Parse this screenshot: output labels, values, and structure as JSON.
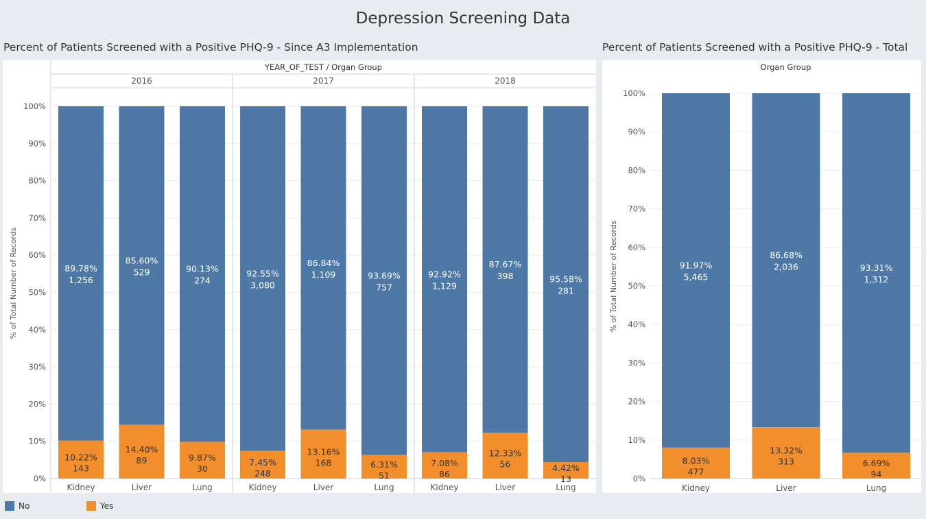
{
  "dashboard_title": "Depression Screening Data",
  "legend": [
    {
      "label": "No",
      "color": "#4e79a7"
    },
    {
      "label": "Yes",
      "color": "#f28e2b"
    }
  ],
  "chart_data": [
    {
      "type": "bar",
      "stacked": true,
      "title": "Percent of Patients Screened with a Positive PHQ-9 - Since A3 Implementation",
      "header": "YEAR_OF_TEST  /  Organ Group",
      "ylabel": "% of Total Number of Records",
      "ylim": [
        0,
        100
      ],
      "yticks": [
        "0%",
        "10%",
        "20%",
        "30%",
        "40%",
        "50%",
        "60%",
        "70%",
        "80%",
        "90%",
        "100%"
      ],
      "groups": [
        {
          "year": "2016",
          "bars": [
            {
              "category": "Kidney",
              "no_pct": 89.78,
              "no_label": "89.78%",
              "no_count": "1,256",
              "yes_pct": 10.22,
              "yes_label": "10.22%",
              "yes_count": "143"
            },
            {
              "category": "Liver",
              "no_pct": 85.6,
              "no_label": "85.60%",
              "no_count": "529",
              "yes_pct": 14.4,
              "yes_label": "14.40%",
              "yes_count": "89"
            },
            {
              "category": "Lung",
              "no_pct": 90.13,
              "no_label": "90.13%",
              "no_count": "274",
              "yes_pct": 9.87,
              "yes_label": "9.87%",
              "yes_count": "30"
            }
          ]
        },
        {
          "year": "2017",
          "bars": [
            {
              "category": "Kidney",
              "no_pct": 92.55,
              "no_label": "92.55%",
              "no_count": "3,080",
              "yes_pct": 7.45,
              "yes_label": "7.45%",
              "yes_count": "248"
            },
            {
              "category": "Liver",
              "no_pct": 86.84,
              "no_label": "86.84%",
              "no_count": "1,109",
              "yes_pct": 13.16,
              "yes_label": "13.16%",
              "yes_count": "168"
            },
            {
              "category": "Lung",
              "no_pct": 93.69,
              "no_label": "93.69%",
              "no_count": "757",
              "yes_pct": 6.31,
              "yes_label": "6.31%",
              "yes_count": "51"
            }
          ]
        },
        {
          "year": "2018",
          "bars": [
            {
              "category": "Kidney",
              "no_pct": 92.92,
              "no_label": "92.92%",
              "no_count": "1,129",
              "yes_pct": 7.08,
              "yes_label": "7.08%",
              "yes_count": "86"
            },
            {
              "category": "Liver",
              "no_pct": 87.67,
              "no_label": "87.67%",
              "no_count": "398",
              "yes_pct": 12.33,
              "yes_label": "12.33%",
              "yes_count": "56"
            },
            {
              "category": "Lung",
              "no_pct": 95.58,
              "no_label": "95.58%",
              "no_count": "281",
              "yes_pct": 4.42,
              "yes_label": "4.42%",
              "yes_count": "13"
            }
          ]
        }
      ]
    },
    {
      "type": "bar",
      "stacked": true,
      "title": "Percent of Patients Screened with a Positive PHQ-9 - Total",
      "header": "Organ Group",
      "ylabel": "% of Total Number of Records",
      "ylim": [
        0,
        100
      ],
      "yticks": [
        "0%",
        "10%",
        "20%",
        "30%",
        "40%",
        "50%",
        "60%",
        "70%",
        "80%",
        "90%",
        "100%"
      ],
      "bars": [
        {
          "category": "Kidney",
          "no_pct": 91.97,
          "no_label": "91.97%",
          "no_count": "5,465",
          "yes_pct": 8.03,
          "yes_label": "8.03%",
          "yes_count": "477"
        },
        {
          "category": "Liver",
          "no_pct": 86.68,
          "no_label": "86.68%",
          "no_count": "2,036",
          "yes_pct": 13.32,
          "yes_label": "13.32%",
          "yes_count": "313"
        },
        {
          "category": "Lung",
          "no_pct": 93.31,
          "no_label": "93.31%",
          "no_count": "1,312",
          "yes_pct": 6.69,
          "yes_label": "6.69%",
          "yes_count": "94"
        }
      ]
    }
  ]
}
